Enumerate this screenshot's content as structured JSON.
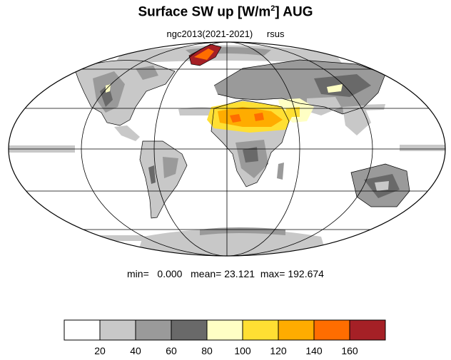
{
  "title": {
    "main": "Surface SW up [W/m",
    "sup": "2",
    "tail": "]  AUG"
  },
  "subtitle": {
    "left": "ngc2013(2021-2021)",
    "right": "rsus"
  },
  "stats": {
    "min_label": "min=",
    "min": "0.000",
    "mean_label": "mean=",
    "mean": "23.121",
    "max_label": "max=",
    "max": "192.674"
  },
  "colorbar": {
    "colors": [
      "#ffffff",
      "#c8c8c8",
      "#9a9a9a",
      "#696969",
      "#ffffc4",
      "#ffdf33",
      "#ffac00",
      "#ff6d00",
      "#a52026"
    ],
    "labels": [
      "20",
      "40",
      "60",
      "80",
      "100",
      "120",
      "140",
      "160"
    ]
  },
  "map_colors": {
    "ocean": "#ffffff",
    "grey_light": "#c8c8c8",
    "grey_mid": "#9a9a9a",
    "grey_dark": "#696969",
    "yellow_pale": "#ffffc4",
    "yellow": "#ffdf33",
    "orange": "#ffac00",
    "orange_dark": "#ff6d00",
    "red": "#a52026"
  }
}
